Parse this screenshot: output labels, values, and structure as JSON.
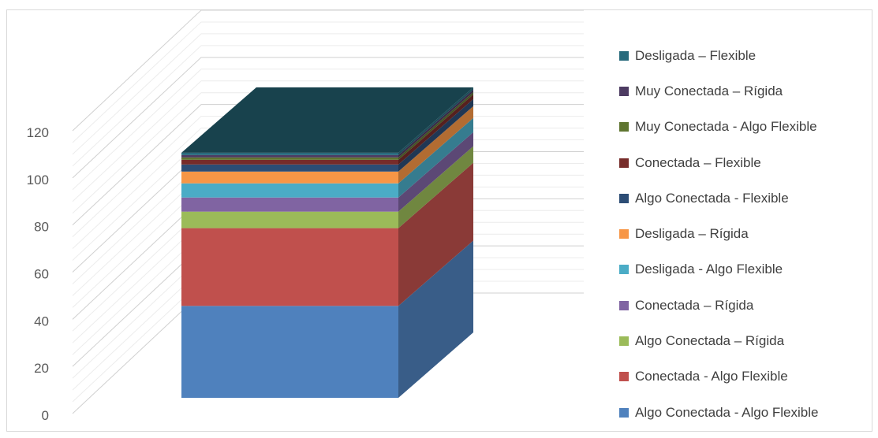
{
  "chart_data": {
    "type": "bar",
    "stacked": true,
    "three_d": true,
    "title": "",
    "xlabel": "",
    "ylabel": "",
    "ylim": [
      0,
      120
    ],
    "yticks": [
      0,
      20,
      40,
      60,
      80,
      100,
      120
    ],
    "grid": true,
    "legend_position": "right",
    "categories": [
      ""
    ],
    "series": [
      {
        "name": "Algo Conectada - Algo Flexible",
        "values": [
          39
        ],
        "color": "#4f81bd"
      },
      {
        "name": "Conectada - Algo Flexible",
        "values": [
          33
        ],
        "color": "#c0504d"
      },
      {
        "name": "Algo Conectada – Rígida",
        "values": [
          7
        ],
        "color": "#9bbb59"
      },
      {
        "name": "Conectada – Rígida",
        "values": [
          6
        ],
        "color": "#8064a2"
      },
      {
        "name": "Desligada - Algo Flexible",
        "values": [
          6
        ],
        "color": "#4bacc6"
      },
      {
        "name": "Desligada – Rígida",
        "values": [
          5
        ],
        "color": "#f79646"
      },
      {
        "name": "Algo Conectada - Flexible",
        "values": [
          3
        ],
        "color": "#2c4d75"
      },
      {
        "name": "Conectada – Flexible",
        "values": [
          2
        ],
        "color": "#772c2a"
      },
      {
        "name": "Muy Conectada - Algo Flexible",
        "values": [
          1
        ],
        "color": "#5f7530"
      },
      {
        "name": "Muy Conectada – Rígida",
        "values": [
          1
        ],
        "color": "#4d3b62"
      },
      {
        "name": "Desligada – Flexible",
        "values": [
          1
        ],
        "color": "#276a7c"
      }
    ]
  }
}
